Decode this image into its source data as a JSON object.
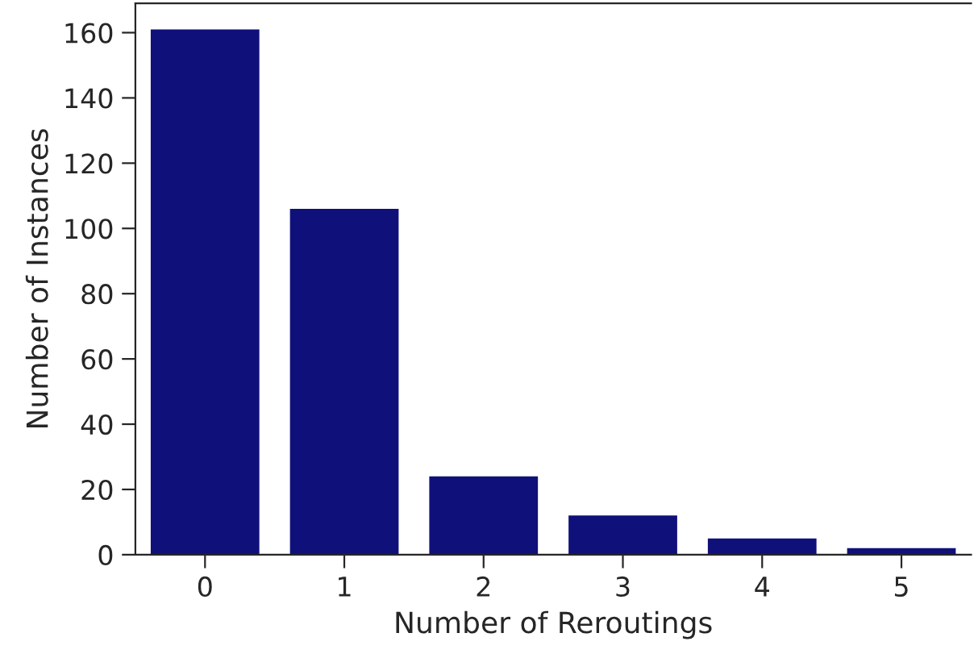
{
  "chart_data": {
    "type": "bar",
    "xlabel": "Number of Reroutings",
    "ylabel": "Number of Instances",
    "categories": [
      "0",
      "1",
      "2",
      "3",
      "4",
      "5"
    ],
    "values": [
      161,
      106,
      24,
      12,
      5,
      2
    ],
    "color": "#10107a",
    "ylim": [
      0,
      169
    ],
    "yticks": [
      0,
      20,
      40,
      60,
      80,
      100,
      120,
      140,
      160
    ],
    "grid": false
  }
}
